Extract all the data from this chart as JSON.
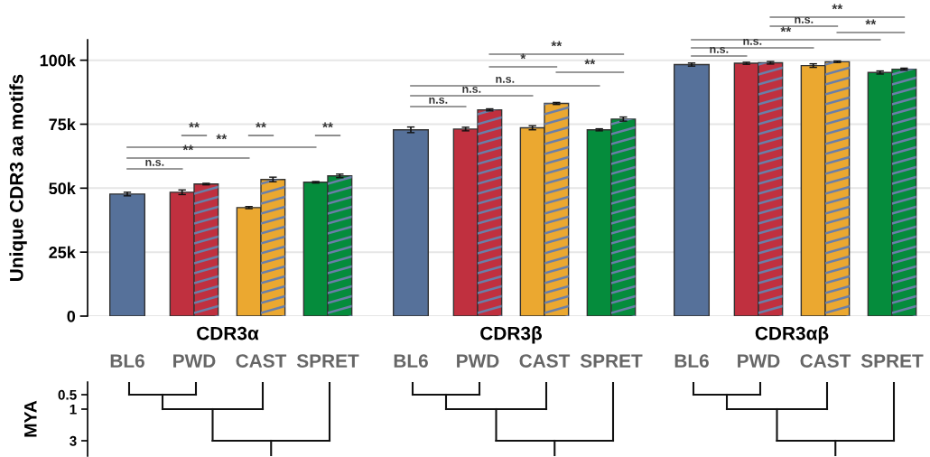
{
  "chart_data": {
    "type": "bar",
    "ylabel": "Unique CDR3 aa motifs",
    "categories": [
      "BL6",
      "PWD",
      "CAST",
      "SPRET",
      "BL6",
      "PWD",
      "CAST",
      "SPRET",
      "BL6",
      "PWD",
      "CAST",
      "SPRET"
    ],
    "series": [
      {
        "colors": [
          "#56719a",
          "#c0303f",
          "#eba830",
          "#058c3c",
          "#56719a",
          "#c0303f",
          "#eba830",
          "#058c3c",
          "#56719a",
          "#c0303f",
          "#eba830",
          "#058c3c"
        ],
        "values": [
          47700,
          48400,
          42400,
          52300,
          72800,
          73100,
          73600,
          72800,
          98300,
          98800,
          97900,
          95200
        ],
        "errors": [
          700,
          900,
          400,
          300,
          1100,
          700,
          800,
          400,
          600,
          400,
          700,
          600
        ]
      },
      {
        "colors": [
          null,
          "#c0303f",
          "#eba830",
          "#058c3c",
          null,
          "#c0303f",
          "#eba830",
          "#058c3c",
          null,
          "#c0303f",
          "#eba830",
          "#058c3c"
        ],
        "values": [
          null,
          51600,
          53400,
          54800,
          null,
          80600,
          83100,
          77000,
          null,
          99000,
          99400,
          96500
        ],
        "errors": [
          null,
          300,
          900,
          700,
          null,
          400,
          400,
          800,
          null,
          500,
          300,
          400
        ]
      }
    ],
    "ylim": [
      0,
      108000
    ],
    "yticks": [
      {
        "value": 0,
        "label": "0"
      },
      {
        "value": 25000,
        "label": "25k"
      },
      {
        "value": 50000,
        "label": "50k"
      },
      {
        "value": 75000,
        "label": "75k"
      },
      {
        "value": 100000,
        "label": "100k"
      }
    ],
    "grid": "y",
    "annotations": [
      "CDR3α",
      "CDR3β",
      "CDR3αβ",
      "n.s.",
      "**",
      "**",
      "**",
      "**",
      "**",
      "n.s.",
      "n.s.",
      "n.s.",
      "**",
      "*",
      "**",
      "n.s.",
      "n.s.",
      "**",
      "**",
      "n.s.",
      "**",
      "MYA",
      "0.5",
      "1",
      "3"
    ]
  }
}
